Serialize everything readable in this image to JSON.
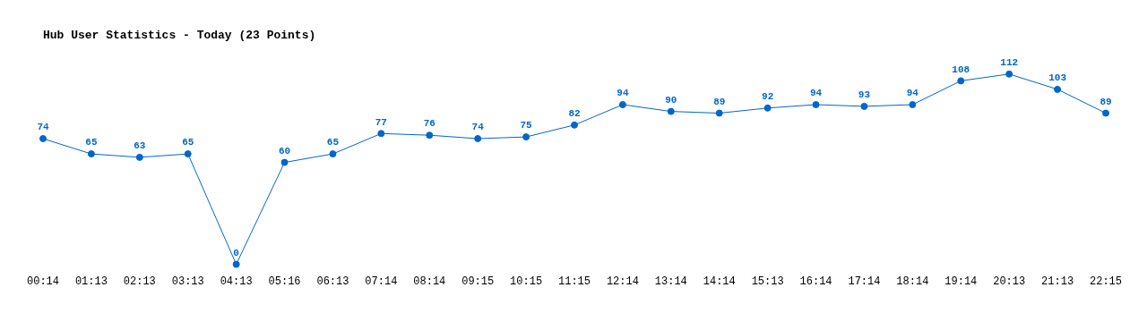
{
  "chart_data": {
    "type": "line",
    "title": "Hub User Statistics - Today (23 Points)",
    "categories": [
      "00:14",
      "01:13",
      "02:13",
      "03:13",
      "04:13",
      "05:16",
      "06:13",
      "07:14",
      "08:14",
      "09:15",
      "10:15",
      "11:15",
      "12:14",
      "13:14",
      "14:14",
      "15:13",
      "16:14",
      "17:14",
      "18:14",
      "19:14",
      "20:13",
      "21:13",
      "22:15"
    ],
    "series": [
      {
        "color": "#0066cc",
        "values": [
          74,
          65,
          63,
          65,
          0,
          60,
          65,
          77,
          76,
          74,
          75,
          82,
          94,
          90,
          89,
          92,
          94,
          93,
          94,
          108,
          112,
          103,
          89
        ]
      }
    ],
    "data_labels": true,
    "marker": "circle",
    "line_style": "solid",
    "grid": false,
    "legend": false,
    "tick_labels": "x"
  }
}
